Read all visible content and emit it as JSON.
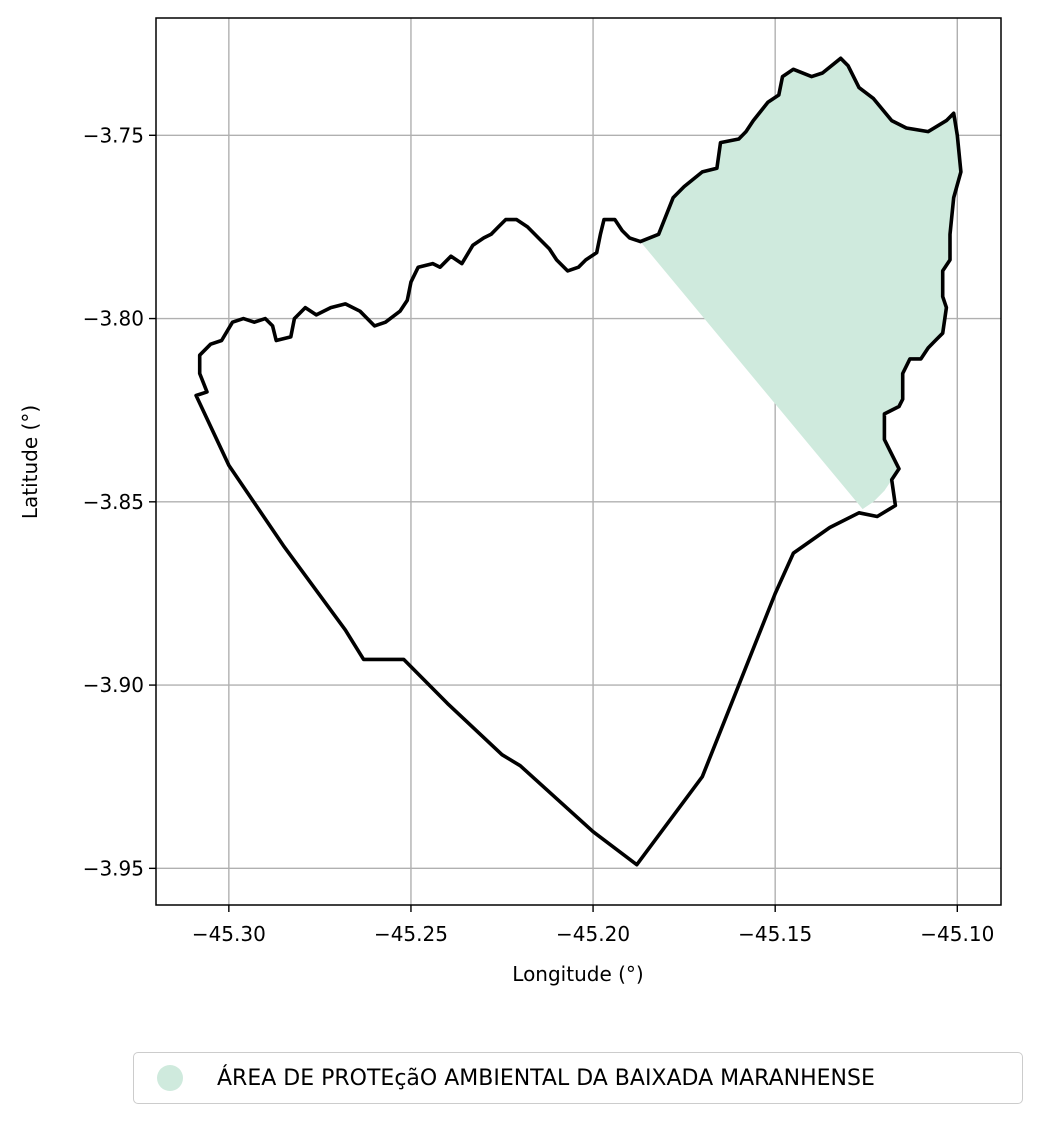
{
  "chart_data": {
    "type": "map",
    "xlabel": "Longitude (°)",
    "ylabel": "Latitude (°)",
    "xlim": [
      -45.32,
      -45.088
    ],
    "ylim": [
      -3.96,
      -3.718
    ],
    "grid": true,
    "legend_placement": "bottom-center, below plot",
    "x_ticks": [
      {
        "value": -45.3,
        "label": "−45.30"
      },
      {
        "value": -45.25,
        "label": "−45.25"
      },
      {
        "value": -45.2,
        "label": "−45.20"
      },
      {
        "value": -45.15,
        "label": "−45.15"
      },
      {
        "value": -45.1,
        "label": "−45.10"
      }
    ],
    "y_ticks": [
      {
        "value": -3.75,
        "label": "−3.75"
      },
      {
        "value": -3.8,
        "label": "−3.80"
      },
      {
        "value": -3.85,
        "label": "−3.85"
      },
      {
        "value": -3.9,
        "label": "−3.90"
      },
      {
        "value": -3.95,
        "label": "−3.95"
      }
    ],
    "protected_area": {
      "name": "ÁREA DE PROTEçãO AMBIENTAL DA BAIXADA MARANHENSE",
      "color": "#cfeadd",
      "coords": [
        [
          -45.187,
          -3.779
        ],
        [
          -45.182,
          -3.777
        ],
        [
          -45.18,
          -3.772
        ],
        [
          -45.178,
          -3.767
        ],
        [
          -45.175,
          -3.764
        ],
        [
          -45.17,
          -3.76
        ],
        [
          -45.166,
          -3.759
        ],
        [
          -45.165,
          -3.752
        ],
        [
          -45.16,
          -3.751
        ],
        [
          -45.158,
          -3.749
        ],
        [
          -45.156,
          -3.746
        ],
        [
          -45.152,
          -3.741
        ],
        [
          -45.149,
          -3.739
        ],
        [
          -45.148,
          -3.734
        ],
        [
          -45.145,
          -3.732
        ],
        [
          -45.14,
          -3.734
        ],
        [
          -45.137,
          -3.733
        ],
        [
          -45.132,
          -3.729
        ],
        [
          -45.13,
          -3.731
        ],
        [
          -45.127,
          -3.737
        ],
        [
          -45.123,
          -3.74
        ],
        [
          -45.118,
          -3.746
        ],
        [
          -45.114,
          -3.748
        ],
        [
          -45.108,
          -3.749
        ],
        [
          -45.103,
          -3.746
        ],
        [
          -45.101,
          -3.744
        ],
        [
          -45.1,
          -3.75
        ],
        [
          -45.099,
          -3.76
        ],
        [
          -45.101,
          -3.767
        ],
        [
          -45.102,
          -3.777
        ],
        [
          -45.102,
          -3.784
        ],
        [
          -45.104,
          -3.787
        ],
        [
          -45.104,
          -3.794
        ],
        [
          -45.103,
          -3.797
        ],
        [
          -45.104,
          -3.804
        ],
        [
          -45.106,
          -3.806
        ],
        [
          -45.108,
          -3.808
        ],
        [
          -45.11,
          -3.811
        ],
        [
          -45.113,
          -3.811
        ],
        [
          -45.115,
          -3.815
        ],
        [
          -45.115,
          -3.822
        ],
        [
          -45.116,
          -3.824
        ],
        [
          -45.12,
          -3.826
        ],
        [
          -45.12,
          -3.833
        ],
        [
          -45.118,
          -3.837
        ],
        [
          -45.116,
          -3.841
        ],
        [
          -45.118,
          -3.844
        ],
        [
          -45.12,
          -3.847
        ],
        [
          -45.123,
          -3.85
        ],
        [
          -45.126,
          -3.852
        ]
      ]
    },
    "municipality_boundary": {
      "coords": [
        [
          -45.309,
          -3.821
        ],
        [
          -45.306,
          -3.82
        ],
        [
          -45.308,
          -3.815
        ],
        [
          -45.308,
          -3.81
        ],
        [
          -45.305,
          -3.807
        ],
        [
          -45.302,
          -3.806
        ],
        [
          -45.299,
          -3.801
        ],
        [
          -45.296,
          -3.8
        ],
        [
          -45.293,
          -3.801
        ],
        [
          -45.29,
          -3.8
        ],
        [
          -45.288,
          -3.802
        ],
        [
          -45.287,
          -3.806
        ],
        [
          -45.283,
          -3.805
        ],
        [
          -45.282,
          -3.8
        ],
        [
          -45.279,
          -3.797
        ],
        [
          -45.276,
          -3.799
        ],
        [
          -45.272,
          -3.797
        ],
        [
          -45.268,
          -3.796
        ],
        [
          -45.264,
          -3.798
        ],
        [
          -45.26,
          -3.802
        ],
        [
          -45.257,
          -3.801
        ],
        [
          -45.253,
          -3.798
        ],
        [
          -45.251,
          -3.795
        ],
        [
          -45.25,
          -3.79
        ],
        [
          -45.248,
          -3.786
        ],
        [
          -45.244,
          -3.785
        ],
        [
          -45.242,
          -3.786
        ],
        [
          -45.239,
          -3.783
        ],
        [
          -45.236,
          -3.785
        ],
        [
          -45.233,
          -3.78
        ],
        [
          -45.23,
          -3.778
        ],
        [
          -45.228,
          -3.777
        ],
        [
          -45.226,
          -3.775
        ],
        [
          -45.224,
          -3.773
        ],
        [
          -45.221,
          -3.773
        ],
        [
          -45.218,
          -3.775
        ],
        [
          -45.215,
          -3.778
        ],
        [
          -45.212,
          -3.781
        ],
        [
          -45.21,
          -3.784
        ],
        [
          -45.207,
          -3.787
        ],
        [
          -45.204,
          -3.786
        ],
        [
          -45.202,
          -3.784
        ],
        [
          -45.199,
          -3.782
        ],
        [
          -45.198,
          -3.777
        ],
        [
          -45.197,
          -3.773
        ],
        [
          -45.194,
          -3.773
        ],
        [
          -45.192,
          -3.776
        ],
        [
          -45.19,
          -3.778
        ],
        [
          -45.187,
          -3.779
        ],
        [
          -45.182,
          -3.777
        ],
        [
          -45.18,
          -3.772
        ],
        [
          -45.178,
          -3.767
        ],
        [
          -45.175,
          -3.764
        ],
        [
          -45.17,
          -3.76
        ],
        [
          -45.166,
          -3.759
        ],
        [
          -45.165,
          -3.752
        ],
        [
          -45.16,
          -3.751
        ],
        [
          -45.158,
          -3.749
        ],
        [
          -45.156,
          -3.746
        ],
        [
          -45.152,
          -3.741
        ],
        [
          -45.149,
          -3.739
        ],
        [
          -45.148,
          -3.734
        ],
        [
          -45.145,
          -3.732
        ],
        [
          -45.14,
          -3.734
        ],
        [
          -45.137,
          -3.733
        ],
        [
          -45.132,
          -3.729
        ],
        [
          -45.13,
          -3.731
        ],
        [
          -45.127,
          -3.737
        ],
        [
          -45.123,
          -3.74
        ],
        [
          -45.118,
          -3.746
        ],
        [
          -45.114,
          -3.748
        ],
        [
          -45.108,
          -3.749
        ],
        [
          -45.103,
          -3.746
        ],
        [
          -45.101,
          -3.744
        ],
        [
          -45.1,
          -3.75
        ],
        [
          -45.099,
          -3.76
        ],
        [
          -45.101,
          -3.767
        ],
        [
          -45.102,
          -3.777
        ],
        [
          -45.102,
          -3.784
        ],
        [
          -45.104,
          -3.787
        ],
        [
          -45.104,
          -3.794
        ],
        [
          -45.103,
          -3.797
        ],
        [
          -45.104,
          -3.804
        ],
        [
          -45.106,
          -3.806
        ],
        [
          -45.108,
          -3.808
        ],
        [
          -45.11,
          -3.811
        ],
        [
          -45.113,
          -3.811
        ],
        [
          -45.115,
          -3.815
        ],
        [
          -45.115,
          -3.822
        ],
        [
          -45.116,
          -3.824
        ],
        [
          -45.12,
          -3.826
        ],
        [
          -45.12,
          -3.833
        ],
        [
          -45.118,
          -3.837
        ],
        [
          -45.116,
          -3.841
        ],
        [
          -45.118,
          -3.844
        ],
        [
          -45.117,
          -3.851
        ],
        [
          -45.122,
          -3.854
        ],
        [
          -45.127,
          -3.853
        ],
        [
          -45.135,
          -3.857
        ],
        [
          -45.145,
          -3.864
        ],
        [
          -45.15,
          -3.875
        ],
        [
          -45.16,
          -3.9
        ],
        [
          -45.17,
          -3.925
        ],
        [
          -45.188,
          -3.949
        ],
        [
          -45.2,
          -3.94
        ],
        [
          -45.22,
          -3.922
        ],
        [
          -45.225,
          -3.919
        ],
        [
          -45.24,
          -3.905
        ],
        [
          -45.252,
          -3.893
        ],
        [
          -45.263,
          -3.893
        ],
        [
          -45.268,
          -3.885
        ],
        [
          -45.285,
          -3.862
        ],
        [
          -45.3,
          -3.84
        ],
        [
          -45.309,
          -3.821
        ]
      ]
    }
  }
}
